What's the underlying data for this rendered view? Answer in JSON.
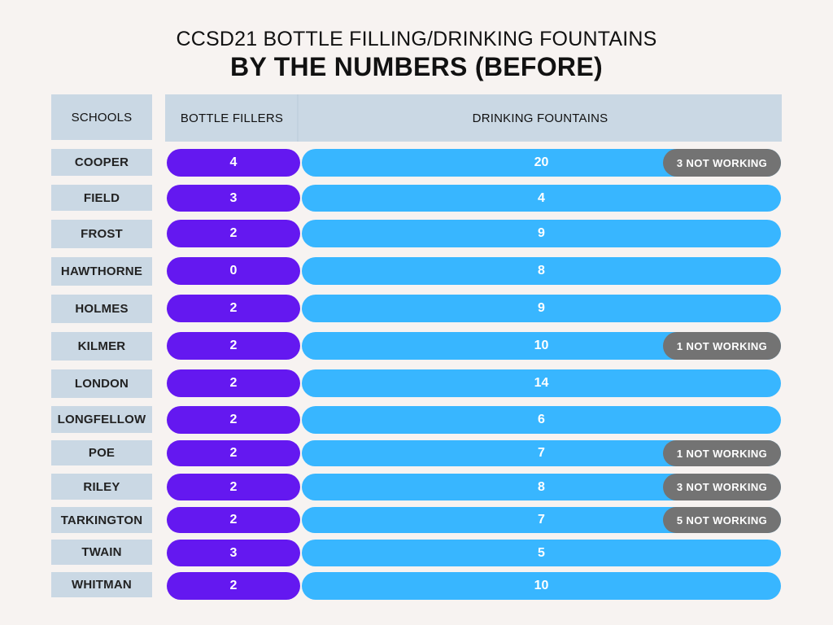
{
  "title_line1": "CCSD21 BOTTLE FILLING/DRINKING FOUNTAINS",
  "title_line2": "BY THE NUMBERS (BEFORE)",
  "headers": {
    "schools": "SCHOOLS",
    "bottle_fillers": "BOTTLE FILLERS",
    "drinking_fountains": "DRINKING FOUNTAINS"
  },
  "colors": {
    "background": "#f7f3f1",
    "header_fill": "#cad8e4",
    "bottle_fillers_bar": "#6418f0",
    "drinking_fountains_bar": "#38b6ff",
    "not_working_badge": "#737373"
  },
  "chart_data": {
    "type": "table",
    "title": "CCSD21 BOTTLE FILLING/DRINKING FOUNTAINS",
    "subtitle": "BY THE NUMBERS (BEFORE)",
    "columns": [
      "SCHOOLS",
      "BOTTLE FILLERS",
      "DRINKING FOUNTAINS"
    ],
    "rows": [
      {
        "school": "COOPER",
        "bottle_fillers": "4",
        "drinking_fountains": "20",
        "note": "3 NOT WORKING"
      },
      {
        "school": "FIELD",
        "bottle_fillers": "3",
        "drinking_fountains": "4",
        "note": ""
      },
      {
        "school": "FROST",
        "bottle_fillers": "2",
        "drinking_fountains": "9",
        "note": ""
      },
      {
        "school": "HAWTHORNE",
        "bottle_fillers": "0",
        "drinking_fountains": "8",
        "note": ""
      },
      {
        "school": "HOLMES",
        "bottle_fillers": "2",
        "drinking_fountains": "9",
        "note": ""
      },
      {
        "school": "KILMER",
        "bottle_fillers": "2",
        "drinking_fountains": "10",
        "note": "1 NOT WORKING"
      },
      {
        "school": "LONDON",
        "bottle_fillers": "2",
        "drinking_fountains": "14",
        "note": ""
      },
      {
        "school": "LONGFELLOW",
        "bottle_fillers": "2",
        "drinking_fountains": "6",
        "note": ""
      },
      {
        "school": "POE",
        "bottle_fillers": "2",
        "drinking_fountains": "7",
        "note": "1 NOT WORKING"
      },
      {
        "school": "RILEY",
        "bottle_fillers": "2",
        "drinking_fountains": "8",
        "note": "3 NOT WORKING"
      },
      {
        "school": "TARKINGTON",
        "bottle_fillers": "2",
        "drinking_fountains": "7",
        "note": "5 NOT WORKING"
      },
      {
        "school": "TWAIN",
        "bottle_fillers": "3",
        "drinking_fountains": "5",
        "note": ""
      },
      {
        "school": "WHITMAN",
        "bottle_fillers": "2",
        "drinking_fountains": "10",
        "note": ""
      }
    ]
  }
}
